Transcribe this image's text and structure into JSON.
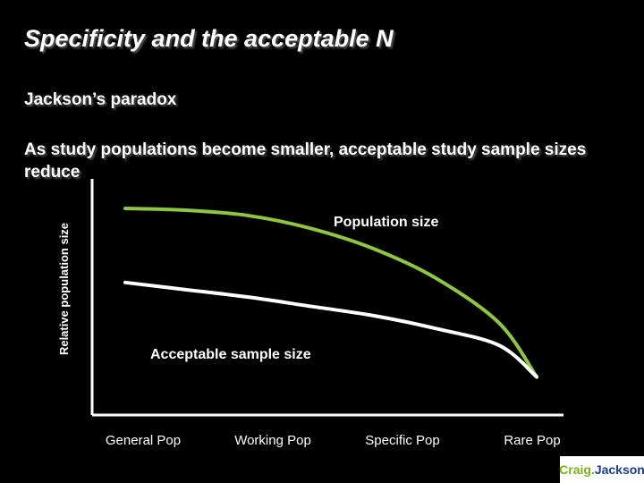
{
  "slide": {
    "title": "Specificity and the acceptable N",
    "subtitle": "Jackson’s paradox",
    "body": "As study populations become smaller, acceptable study sample sizes reduce"
  },
  "chart_data": {
    "type": "line",
    "ylabel": "Relative population size",
    "xlabel": "",
    "categories": [
      "General Pop",
      "Working Pop",
      "Specific Pop",
      "Rare Pop"
    ],
    "xlim": [
      0,
      3.3
    ],
    "ylim": [
      0,
      100
    ],
    "grid": false,
    "annotations": [
      {
        "text": "Population size",
        "series": 0
      },
      {
        "text": "Acceptable sample size",
        "series": 1
      }
    ],
    "series": [
      {
        "name": "Population size",
        "color": "#8dc63f",
        "x": [
          0,
          0.5,
          1.0,
          1.5,
          2.0,
          2.5,
          3.0,
          3.3
        ],
        "values": [
          100,
          99,
          96,
          89,
          78,
          62,
          38,
          9
        ]
      },
      {
        "name": "Acceptable sample size",
        "color": "#ffffff",
        "x": [
          0,
          0.5,
          1.0,
          1.5,
          2.0,
          2.5,
          3.0,
          3.3
        ],
        "values": [
          60,
          56,
          52,
          47,
          42,
          35,
          26,
          9
        ]
      }
    ]
  },
  "logo": {
    "first": "Craig",
    "dot": ".",
    "last": "Jackson"
  },
  "colors": {
    "background": "#000000",
    "accent": "#8dc63f",
    "text": "#ffffff"
  }
}
